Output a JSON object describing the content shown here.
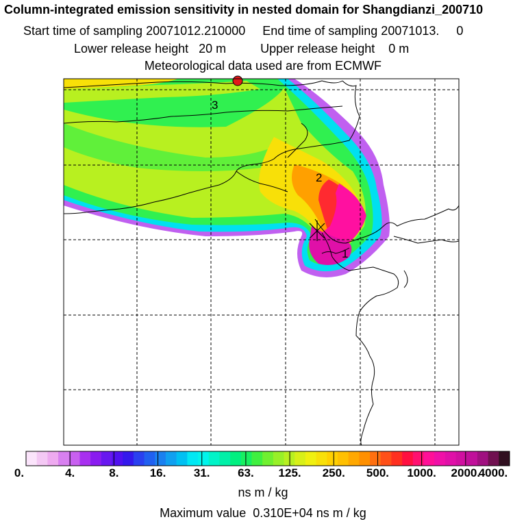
{
  "header": {
    "title": "Column-integrated emission sensitivity in nested domain for Shangdianzi_200710",
    "sampling_line": "Start time of sampling 20071012.210000     End time of sampling 20071013.     0",
    "release_line": "Lower release height   20 m          Upper release height    0 m",
    "met_line": "Meteorological data used are from ECMWF"
  },
  "map": {
    "plume_labels": [
      "3",
      "2",
      "1"
    ],
    "colors": {
      "receptor_marker": "#e21a1a",
      "frame": "#000000",
      "gridline": "#000000"
    }
  },
  "colorbar": {
    "tick_labels": [
      "0.",
      "4.",
      "8.",
      "16.",
      "31.",
      "63.",
      "125.",
      "250.",
      "500.",
      "1000.",
      "2000.",
      "4000."
    ],
    "colors": [
      "#fbe4fb",
      "#f4c8f4",
      "#eeaaf0",
      "#d880f0",
      "#c860f0",
      "#a830f0",
      "#8a1cf0",
      "#6818f0",
      "#5010f0",
      "#3418ec",
      "#2a40f0",
      "#2060f0",
      "#1a80f0",
      "#10a0f0",
      "#00c0f2",
      "#00e8f4",
      "#00f4ec",
      "#00f4c8",
      "#00f0a8",
      "#00f080",
      "#18f060",
      "#40f040",
      "#70f030",
      "#98f028",
      "#b8f020",
      "#d8f018",
      "#f0f010",
      "#f8e008",
      "#ffd000",
      "#ffc000",
      "#ffa800",
      "#ff9000",
      "#ff7010",
      "#ff5018",
      "#ff3020",
      "#ff1040",
      "#ff1070",
      "#ff1098",
      "#f010a8",
      "#e010a8",
      "#d010a0",
      "#c0109a",
      "#a01080",
      "#701050",
      "#301020"
    ],
    "unit": "ns m / kg",
    "max_value_text": "Maximum value  0.310E+04 ns m / kg"
  }
}
